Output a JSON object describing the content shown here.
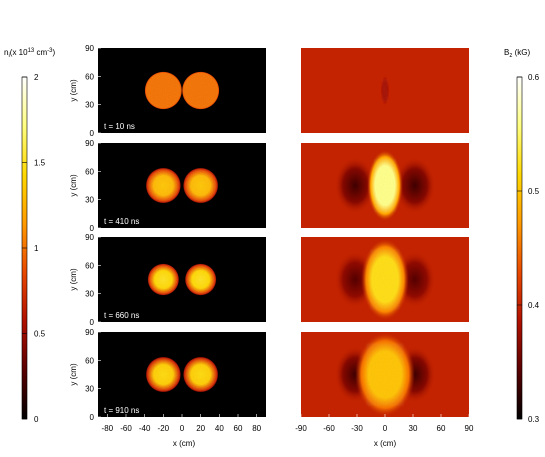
{
  "chart_data": [
    {
      "type": "heatmap",
      "title": "",
      "colorbar_label": "n",
      "colorbar_subscript": "i",
      "colorbar_unit_prefix": "(x 10",
      "colorbar_unit_exp": "13",
      "colorbar_unit_suffix": " cm",
      "colorbar_unit_exp2": "-3",
      "colorbar_unit_close": ")",
      "colorbar_ticks": [
        "0",
        "0.5",
        "1",
        "1.5",
        "2"
      ],
      "colorbar_range": [
        0,
        2
      ],
      "xlabel": "x (cm)",
      "ylabel": "y (cm)",
      "xlim": [
        -90,
        90
      ],
      "ylim": [
        0,
        90
      ],
      "xticks": [
        "-80",
        "-60",
        "-40",
        "-20",
        "0",
        "20",
        "40",
        "60",
        "80"
      ],
      "yticks": [
        "0",
        "30",
        "60",
        "90"
      ],
      "colormap": [
        "#000000",
        "#5a0000",
        "#b01000",
        "#e84800",
        "#ff9a00",
        "#ffd800",
        "#ffff80",
        "#ffffff"
      ],
      "panels": [
        {
          "time_label": "t = 10 ns",
          "x_centers": [
            -20,
            20
          ],
          "y_center": 45,
          "radius": 20,
          "edge_value": 1.0,
          "center_value": 1.0
        },
        {
          "time_label": "t = 410 ns",
          "x_centers": [
            -20,
            20
          ],
          "y_center": 45,
          "radius": 19,
          "edge_value": 0.85,
          "center_value": 1.35
        },
        {
          "time_label": "t = 660 ns",
          "x_centers": [
            -20,
            20
          ],
          "y_center": 45,
          "radius": 17,
          "edge_value": 0.85,
          "center_value": 1.5
        },
        {
          "time_label": "t = 910 ns",
          "x_centers": [
            -20,
            20
          ],
          "y_center": 45,
          "radius": 19,
          "edge_value": 0.8,
          "center_value": 1.45
        }
      ]
    },
    {
      "type": "heatmap",
      "title": "",
      "colorbar_label": "B",
      "colorbar_subscript": "z",
      "colorbar_unit": " (kG)",
      "colorbar_ticks": [
        "0.3",
        "0.4",
        "0.5",
        "0.6"
      ],
      "colorbar_range": [
        0.3,
        0.6
      ],
      "xlabel": "x (cm)",
      "ylabel": "",
      "xlim": [
        -90,
        90
      ],
      "ylim": [
        0,
        90
      ],
      "xticks": [
        "-90",
        "-60",
        "-30",
        "0",
        "30",
        "60",
        "90"
      ],
      "background_value": 0.4,
      "colormap": [
        "#000000",
        "#5a0000",
        "#b01000",
        "#e84800",
        "#ff9a00",
        "#ffd800",
        "#ffff80",
        "#ffffff"
      ],
      "panels": [
        {
          "core_value": 0.38,
          "core_half_width": 3,
          "core_half_height": 12,
          "min_value": 0.4,
          "min_x": 30
        },
        {
          "core_value": 0.56,
          "core_half_width": 12,
          "core_half_height": 28,
          "min_value": 0.33,
          "min_x": 32
        },
        {
          "core_value": 0.52,
          "core_half_width": 16,
          "core_half_height": 32,
          "min_value": 0.34,
          "min_x": 32
        },
        {
          "core_value": 0.5,
          "core_half_width": 20,
          "core_half_height": 33,
          "min_value": 0.33,
          "min_x": 32
        }
      ]
    }
  ]
}
